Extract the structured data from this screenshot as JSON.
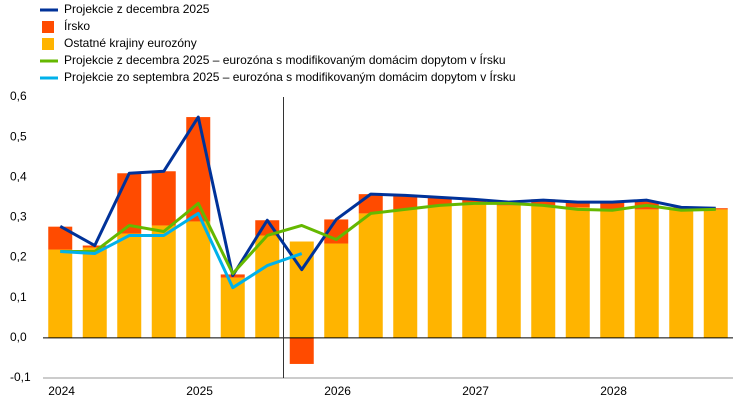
{
  "chart_data": {
    "type": "bar",
    "stacked": true,
    "categories": [
      "2024",
      null,
      null,
      null,
      "2025",
      null,
      null,
      null,
      "2026",
      null,
      null,
      null,
      "2027",
      null,
      null,
      null,
      "2028",
      null,
      null,
      null
    ],
    "series": [
      {
        "name": "Projekcie z decembra 2025",
        "type": "line",
        "color": "#003299",
        "values": [
          0.278,
          0.23,
          0.41,
          0.415,
          0.55,
          0.155,
          0.293,
          0.17,
          0.295,
          0.358,
          0.355,
          0.35,
          0.345,
          0.338,
          0.343,
          0.338,
          0.338,
          0.343,
          0.325,
          0.323
        ]
      },
      {
        "name": "Írsko",
        "type": "bar",
        "color": "#ff4b00",
        "values": [
          0.057,
          0.005,
          0.15,
          0.135,
          0.26,
          0.008,
          0.038,
          -0.065,
          0.06,
          0.048,
          0.035,
          0.02,
          0.01,
          0.008,
          0.015,
          0.015,
          0.02,
          0.02,
          0.005,
          0.003
        ]
      },
      {
        "name": "Ostatné krajiny eurozóny",
        "type": "bar",
        "color": "#ffb400",
        "values": [
          0.22,
          0.225,
          0.26,
          0.28,
          0.29,
          0.15,
          0.255,
          0.24,
          0.235,
          0.31,
          0.32,
          0.33,
          0.335,
          0.33,
          0.33,
          0.325,
          0.32,
          0.32,
          0.32,
          0.32
        ]
      },
      {
        "name": "Projekcie z decembra 2025 – eurozóna s modifikovaným domácim dopytom v Írsku",
        "type": "line",
        "color": "#65b800",
        "values": [
          0.215,
          0.215,
          0.28,
          0.265,
          0.335,
          0.16,
          0.255,
          0.28,
          0.245,
          0.31,
          0.32,
          0.33,
          0.335,
          0.335,
          0.33,
          0.32,
          0.318,
          0.33,
          0.318,
          0.32
        ]
      },
      {
        "name": "Projekcie zo septembra 2025 – eurozóna s modifikovaným domácim dopytom v Írsku",
        "type": "line",
        "color": "#00b1ea",
        "values": [
          0.215,
          0.21,
          0.255,
          0.255,
          0.31,
          0.125,
          0.18,
          0.21,
          null,
          null,
          null,
          null,
          null,
          null,
          null,
          null,
          null,
          null,
          null,
          null
        ]
      }
    ],
    "ylim": [
      -0.1,
      0.6
    ],
    "yticks": [
      {
        "value": -0.1,
        "label": "-0,1"
      },
      {
        "value": 0,
        "label": "0,0"
      },
      {
        "value": 0.1,
        "label": "0,1"
      },
      {
        "value": 0.2,
        "label": "0,2"
      },
      {
        "value": 0.3,
        "label": "0,3"
      },
      {
        "value": 0.4,
        "label": "0,4"
      },
      {
        "value": 0.5,
        "label": "0,5"
      },
      {
        "value": 0.6,
        "label": "0,6"
      }
    ],
    "legend": "top-left"
  }
}
